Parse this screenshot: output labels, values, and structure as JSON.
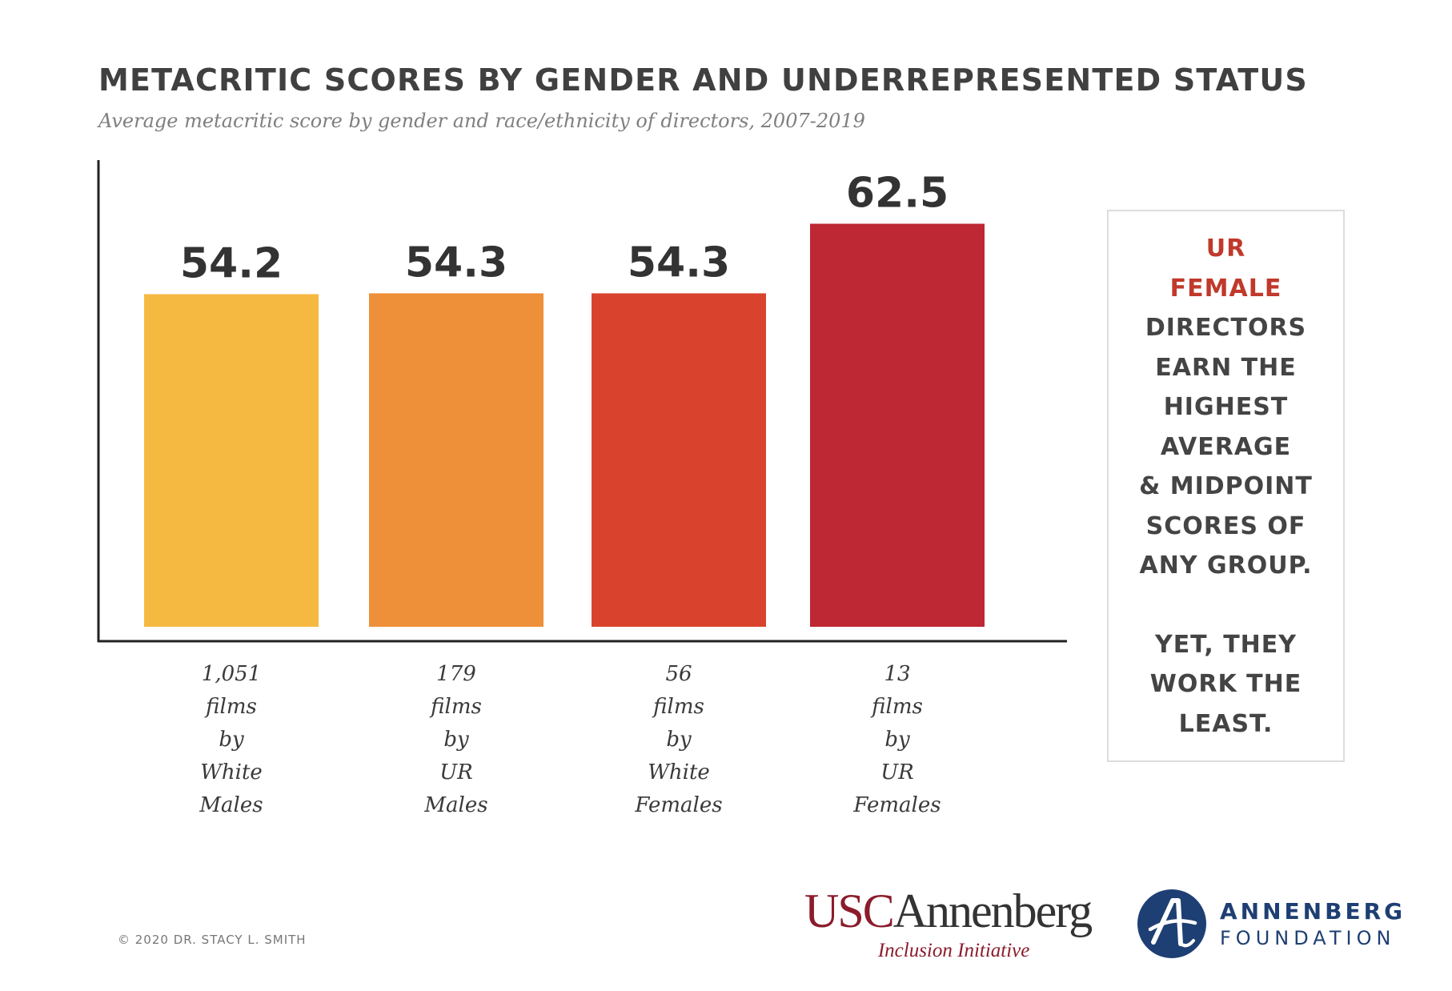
{
  "title": "METACRITIC SCORES BY GENDER AND UNDERREPRESENTED STATUS",
  "subtitle": "Average metacritic score by gender and race/ethnicity of directors, 2007-2019",
  "chart_data": {
    "type": "bar",
    "title": "METACRITIC SCORES BY GENDER AND UNDERREPRESENTED STATUS",
    "subtitle": "Average metacritic score by gender and race/ethnicity of directors, 2007-2019",
    "categories": [
      [
        "1,051",
        "films",
        "by",
        "White",
        "Males"
      ],
      [
        "179",
        "films",
        "by",
        "UR",
        "Males"
      ],
      [
        "56",
        "films",
        "by",
        "White",
        "Females"
      ],
      [
        "13",
        "films",
        "by",
        "UR",
        "Females"
      ]
    ],
    "values": [
      54.2,
      54.3,
      54.3,
      62.5
    ],
    "value_labels": [
      "54.2",
      "54.3",
      "54.3",
      "62.5"
    ],
    "colors": [
      "#f5b942",
      "#ee8f39",
      "#d9432e",
      "#bd2834"
    ],
    "ylim": [
      15,
      70
    ],
    "grid": false,
    "legend": "none"
  },
  "callout": {
    "highlight_lines": [
      "UR",
      "FEMALE"
    ],
    "lines": [
      "DIRECTORS",
      "EARN THE",
      "HIGHEST",
      "AVERAGE",
      "& MIDPOINT",
      "SCORES OF",
      "ANY GROUP."
    ],
    "lines2": [
      "YET, THEY",
      "WORK THE",
      "LEAST."
    ],
    "highlight_color": "#c0392b"
  },
  "footer": {
    "copyright": "© 2020 DR. STACY L. SMITH",
    "usc_part1": "USC",
    "usc_part2": "Annenberg",
    "usc_sub": "Inclusion Initiative",
    "foundation_line1": "ANNENBERG",
    "foundation_line2": "FOUNDATION"
  }
}
